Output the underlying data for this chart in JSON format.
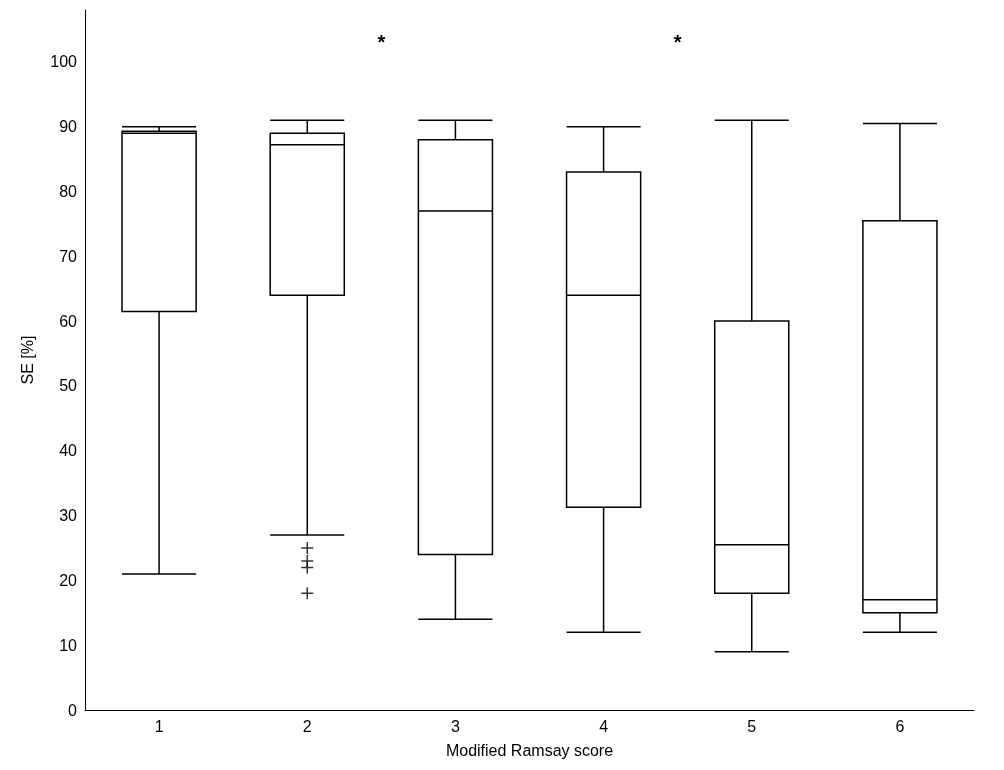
{
  "chart_data": {
    "type": "box",
    "xlabel": "Modified Ramsay score",
    "ylabel": "SE [%]",
    "categories": [
      "1",
      "2",
      "3",
      "4",
      "5",
      "6"
    ],
    "boxes": [
      {
        "low": 21,
        "q1": 61.5,
        "median": 89,
        "q3": 89.3,
        "high": 90
      },
      {
        "low": 27,
        "q1": 64,
        "median": 87.2,
        "q3": 89,
        "high": 91,
        "outliers": [
          25,
          23,
          22,
          18
        ]
      },
      {
        "low": 14,
        "q1": 24,
        "median": 77,
        "q3": 88,
        "high": 91
      },
      {
        "low": 12,
        "q1": 31.3,
        "median": 64,
        "q3": 83,
        "high": 90
      },
      {
        "low": 9,
        "q1": 18,
        "median": 25.5,
        "q3": 60,
        "high": 91
      },
      {
        "low": 12,
        "q1": 15,
        "median": 17,
        "q3": 75.5,
        "high": 90.5
      }
    ],
    "color": "#000000",
    "ylim": [
      0,
      108
    ],
    "yticks": [
      0,
      10,
      20,
      30,
      40,
      50,
      60,
      70,
      80,
      90,
      100
    ],
    "grid": false,
    "annotations": [
      "*",
      "*"
    ]
  }
}
